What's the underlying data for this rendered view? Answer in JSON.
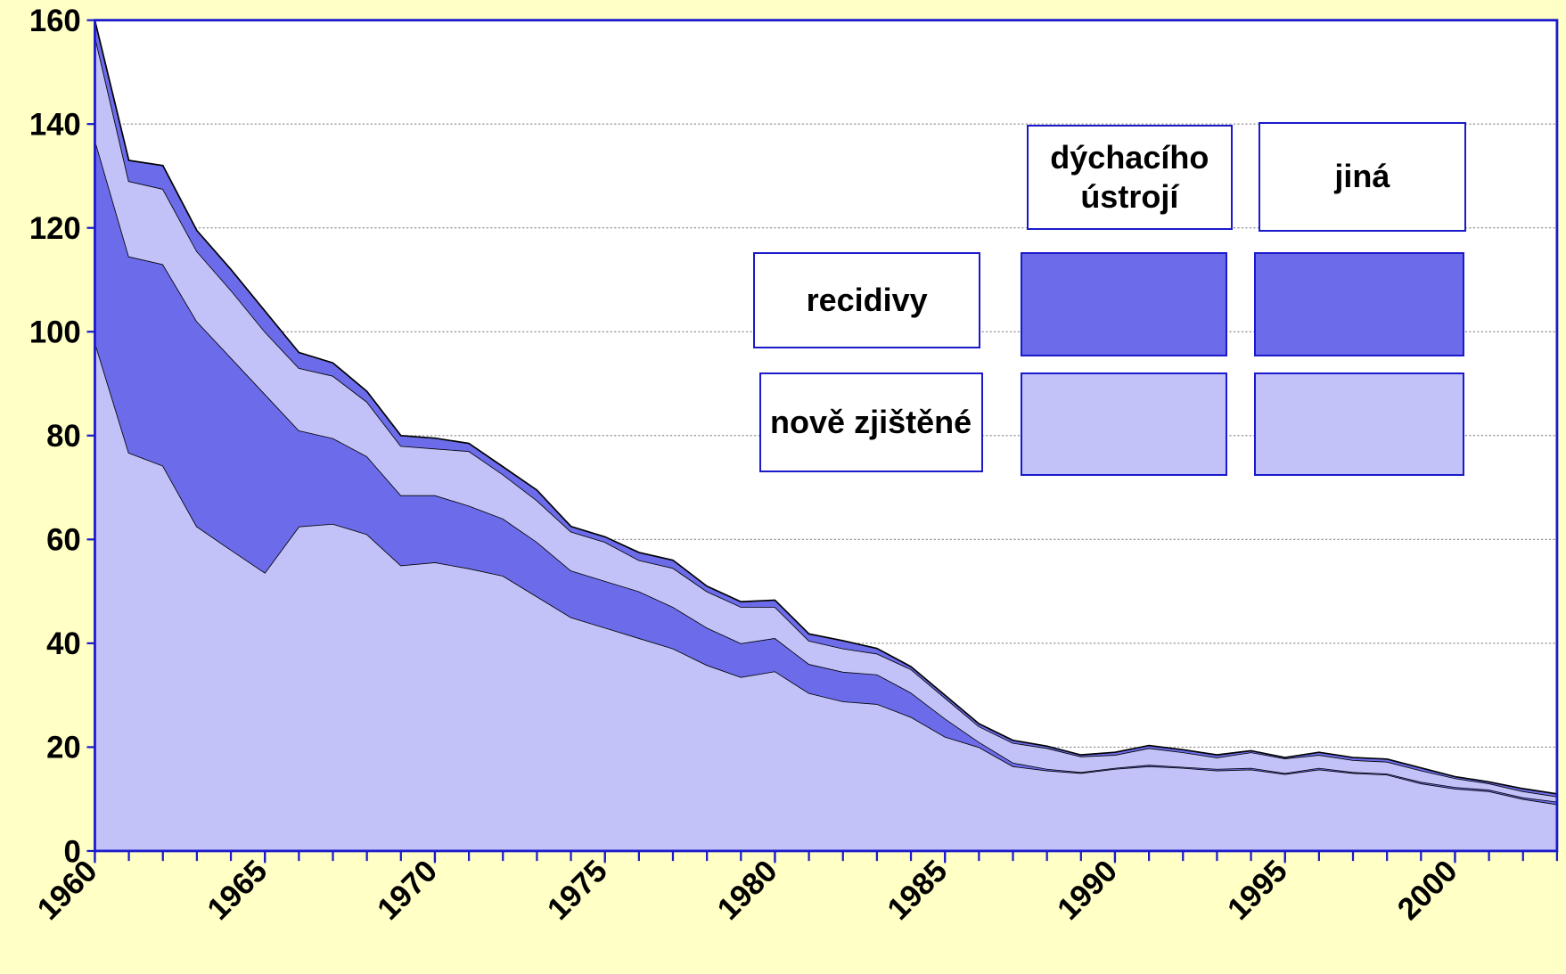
{
  "chart_data": {
    "type": "stacked_area",
    "x": [
      1960,
      1961,
      1962,
      1963,
      1964,
      1965,
      1966,
      1967,
      1968,
      1969,
      1970,
      1971,
      1972,
      1973,
      1974,
      1975,
      1976,
      1977,
      1978,
      1979,
      1980,
      1981,
      1982,
      1983,
      1984,
      1985,
      1986,
      1987,
      1988,
      1989,
      1990,
      1991,
      1992,
      1993,
      1994,
      1995,
      1996,
      1997,
      1998,
      1999,
      2000,
      2001,
      2002,
      2003
    ],
    "xlim": [
      1960,
      2003
    ],
    "xticks": [
      1960,
      1965,
      1970,
      1975,
      1980,
      1985,
      1990,
      1995,
      2000
    ],
    "ylim": [
      0,
      160
    ],
    "yticks": [
      0,
      20,
      40,
      60,
      80,
      100,
      120,
      140,
      160
    ],
    "grid": true,
    "legend": {
      "columns": [
        "dýchacího ústrojí",
        "jiná"
      ],
      "rows": [
        "recidivy",
        "nově zjištěné"
      ]
    },
    "series": [
      {
        "color": "#c2c2f8",
        "values": [
          98,
          76.7,
          74.2,
          62.5,
          58,
          53.6,
          62.5,
          63,
          61,
          55,
          55.6,
          54.4,
          53,
          49,
          45,
          43,
          41,
          39,
          35.8,
          33.5,
          34.6,
          30.4,
          28.8,
          28.3,
          25.8,
          22,
          20,
          16.3,
          15.5,
          15,
          15.8,
          16.3,
          16,
          15.5,
          15.7,
          14.8,
          15.7,
          15,
          14.7,
          13,
          12,
          11.5,
          10,
          9
        ]
      },
      {
        "color": "#6c6cea",
        "values": [
          39,
          37.8,
          38.8,
          39.5,
          37,
          34.4,
          18.5,
          16.5,
          15,
          13.5,
          12.9,
          12.1,
          11,
          10.5,
          9,
          9,
          9,
          8,
          7.2,
          6.5,
          6.4,
          5.6,
          5.7,
          5.7,
          4.7,
          3.5,
          1,
          0.7,
          0.3,
          0.2,
          0.2,
          0.3,
          0.2,
          0.3,
          0.3,
          0.2,
          0.3,
          0.2,
          0.2,
          0.3,
          0.3,
          0.3,
          0.3,
          0.5
        ]
      },
      {
        "color": "#c2c2f8",
        "values": [
          20,
          14.5,
          14.5,
          13.5,
          13,
          12,
          12,
          12,
          10.5,
          9.5,
          9,
          10.5,
          8.5,
          8,
          7.5,
          7.5,
          6,
          7.5,
          7,
          7,
          6,
          4.5,
          4.5,
          4,
          4.5,
          4,
          3,
          3.8,
          4,
          3,
          2.5,
          3.2,
          2.8,
          2.2,
          3,
          2.8,
          2.5,
          2.3,
          2.3,
          2.2,
          1.7,
          1.2,
          1.2,
          1
        ]
      },
      {
        "color": "#6c6cea",
        "values": [
          3,
          4,
          4.5,
          4,
          4,
          4,
          3,
          2.5,
          2,
          2,
          2,
          1.5,
          1.5,
          2,
          1,
          1,
          1.5,
          1.5,
          1,
          1,
          1.3,
          1.3,
          1.5,
          1,
          0.5,
          0.5,
          0.5,
          0.5,
          0.4,
          0.3,
          0.5,
          0.5,
          0.5,
          0.5,
          0.3,
          0.2,
          0.5,
          0.5,
          0.5,
          0.5,
          0.3,
          0.3,
          0.5,
          0.5
        ]
      }
    ]
  }
}
